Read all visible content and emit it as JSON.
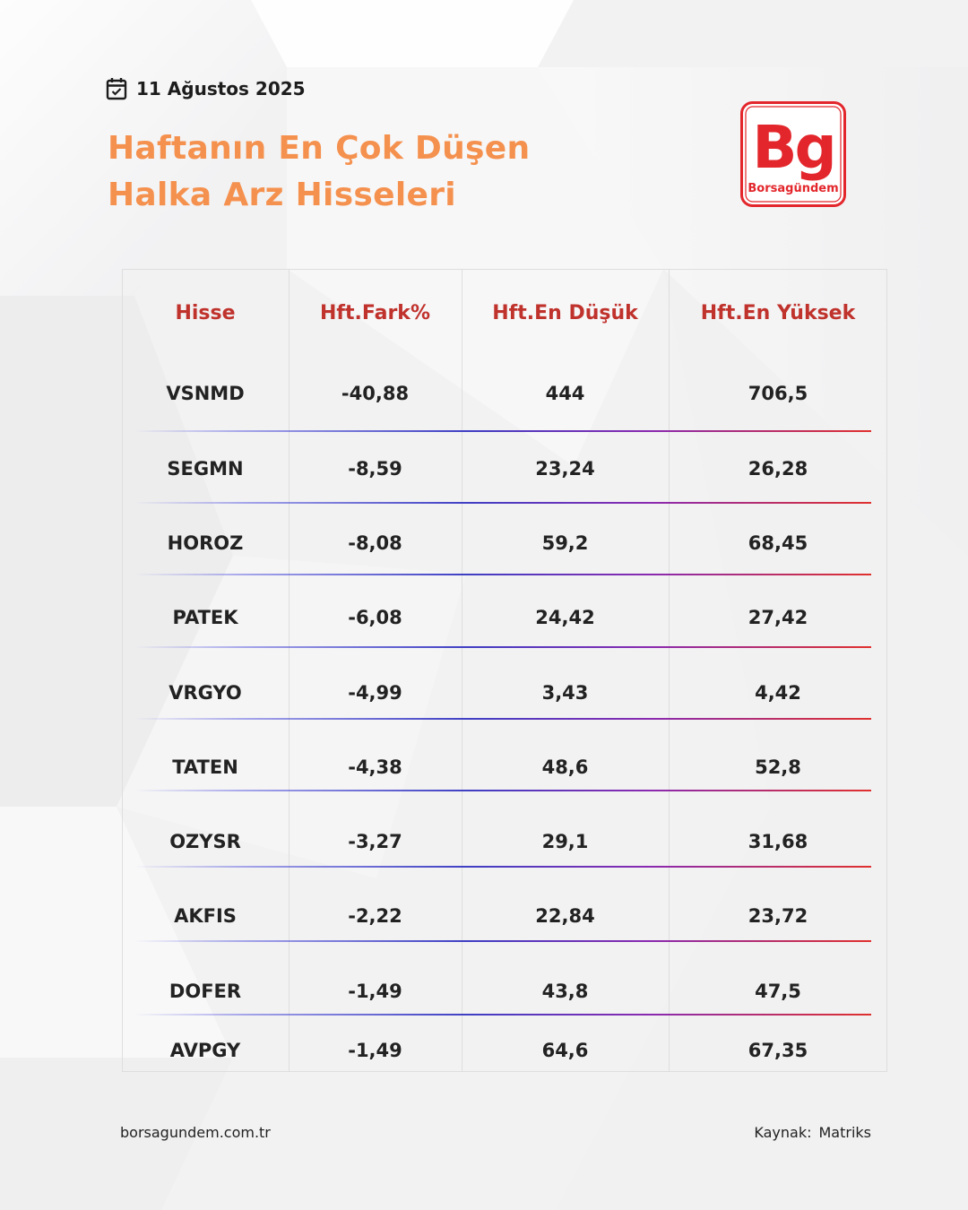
{
  "header": {
    "date": "11 Ağustos 2025",
    "title_line1": "Haftanın En Çok Düşen",
    "title_line2": "Halka Arz Hisseleri",
    "accent_color": "#f5914e"
  },
  "logo": {
    "letters": "Bg",
    "brand": "Borsagündem",
    "color": "#e3262b"
  },
  "table": {
    "header_color": "#c0322c",
    "columns": [
      "Hisse",
      "Hft.Fark%",
      "Hft.En Düşük",
      "Hft.En Yüksek"
    ],
    "rows": [
      [
        "VSNMD",
        "-40,88",
        "444",
        "706,5"
      ],
      [
        "SEGMN",
        "-8,59",
        "23,24",
        "26,28"
      ],
      [
        "HOROZ",
        "-8,08",
        "59,2",
        "68,45"
      ],
      [
        "PATEK",
        "-6,08",
        "24,42",
        "27,42"
      ],
      [
        "VRGYO",
        "-4,99",
        "3,43",
        "4,42"
      ],
      [
        "TATEN",
        "-4,38",
        "48,6",
        "52,8"
      ],
      [
        "OZYSR",
        "-3,27",
        "29,1",
        "31,68"
      ],
      [
        "AKFIS",
        "-2,22",
        "22,84",
        "23,72"
      ],
      [
        "DOFER",
        "-1,49",
        "43,8",
        "47,5"
      ],
      [
        "AVPGY",
        "-1,49",
        "64,6",
        "67,35"
      ]
    ]
  },
  "footer": {
    "website": "borsagundem.com.tr",
    "source_label": "Kaynak:",
    "source_value": "Matriks"
  }
}
